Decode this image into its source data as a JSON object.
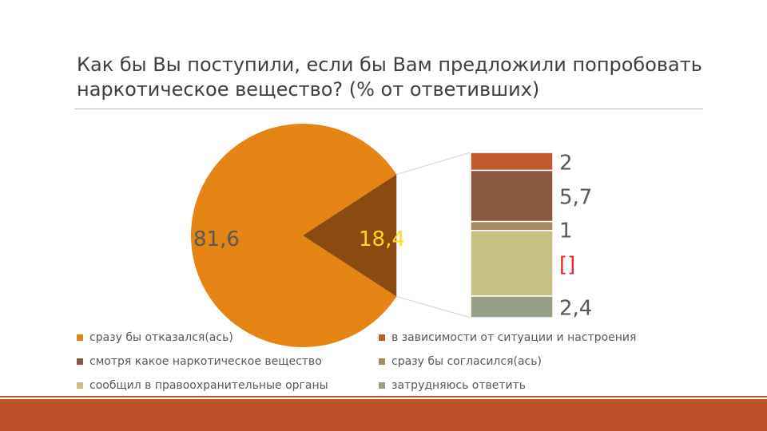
{
  "title": "Как бы Вы поступили, если бы Вам предложили попробовать наркотическое вещество? (% от ответивших)",
  "chart_data": {
    "type": "pie",
    "subtype": "bar-of-pie",
    "pie": {
      "slices": [
        {
          "label": "81,6",
          "value": 81.6,
          "color": "#e38415"
        },
        {
          "label": "18,4",
          "value": 18.4,
          "color": "#8b4a0f",
          "label_color": "#ffd91a"
        }
      ]
    },
    "bar": {
      "segments": [
        {
          "name": "в зависимости от ситуации и настроения",
          "label": "2",
          "value": 2.0,
          "color": "#c0592b"
        },
        {
          "name": "смотря какое наркотическое вещество",
          "label": "5,7",
          "value": 5.7,
          "color": "#8a5841"
        },
        {
          "name": "сразу бы согласился(ась)",
          "label": "1",
          "value": 1.0,
          "color": "#a58b5f"
        },
        {
          "name": "сообщил в правоохранительные органы",
          "label": "[]",
          "value": 7.3,
          "color": "#c7c185",
          "label_color": "#e0262b"
        },
        {
          "name": "затрудняюсь ответить",
          "label": "2,4",
          "value": 2.4,
          "color": "#979f86"
        }
      ]
    },
    "legend": {
      "placement": "bottom",
      "items": [
        {
          "text": "сразу бы отказался(ась)",
          "color": "#e38415"
        },
        {
          "text": "в зависимости от ситуации и настроения",
          "color": "#c0592b"
        },
        {
          "text": "смотря какое наркотическое вещество",
          "color": "#8a5841"
        },
        {
          "text": "сразу бы согласился(ась)",
          "color": "#a58b5f"
        },
        {
          "text": "сообщил в правоохранительные органы",
          "color": "#c7c185"
        },
        {
          "text": "затрудняюсь ответить",
          "color": "#979f86"
        }
      ]
    }
  }
}
